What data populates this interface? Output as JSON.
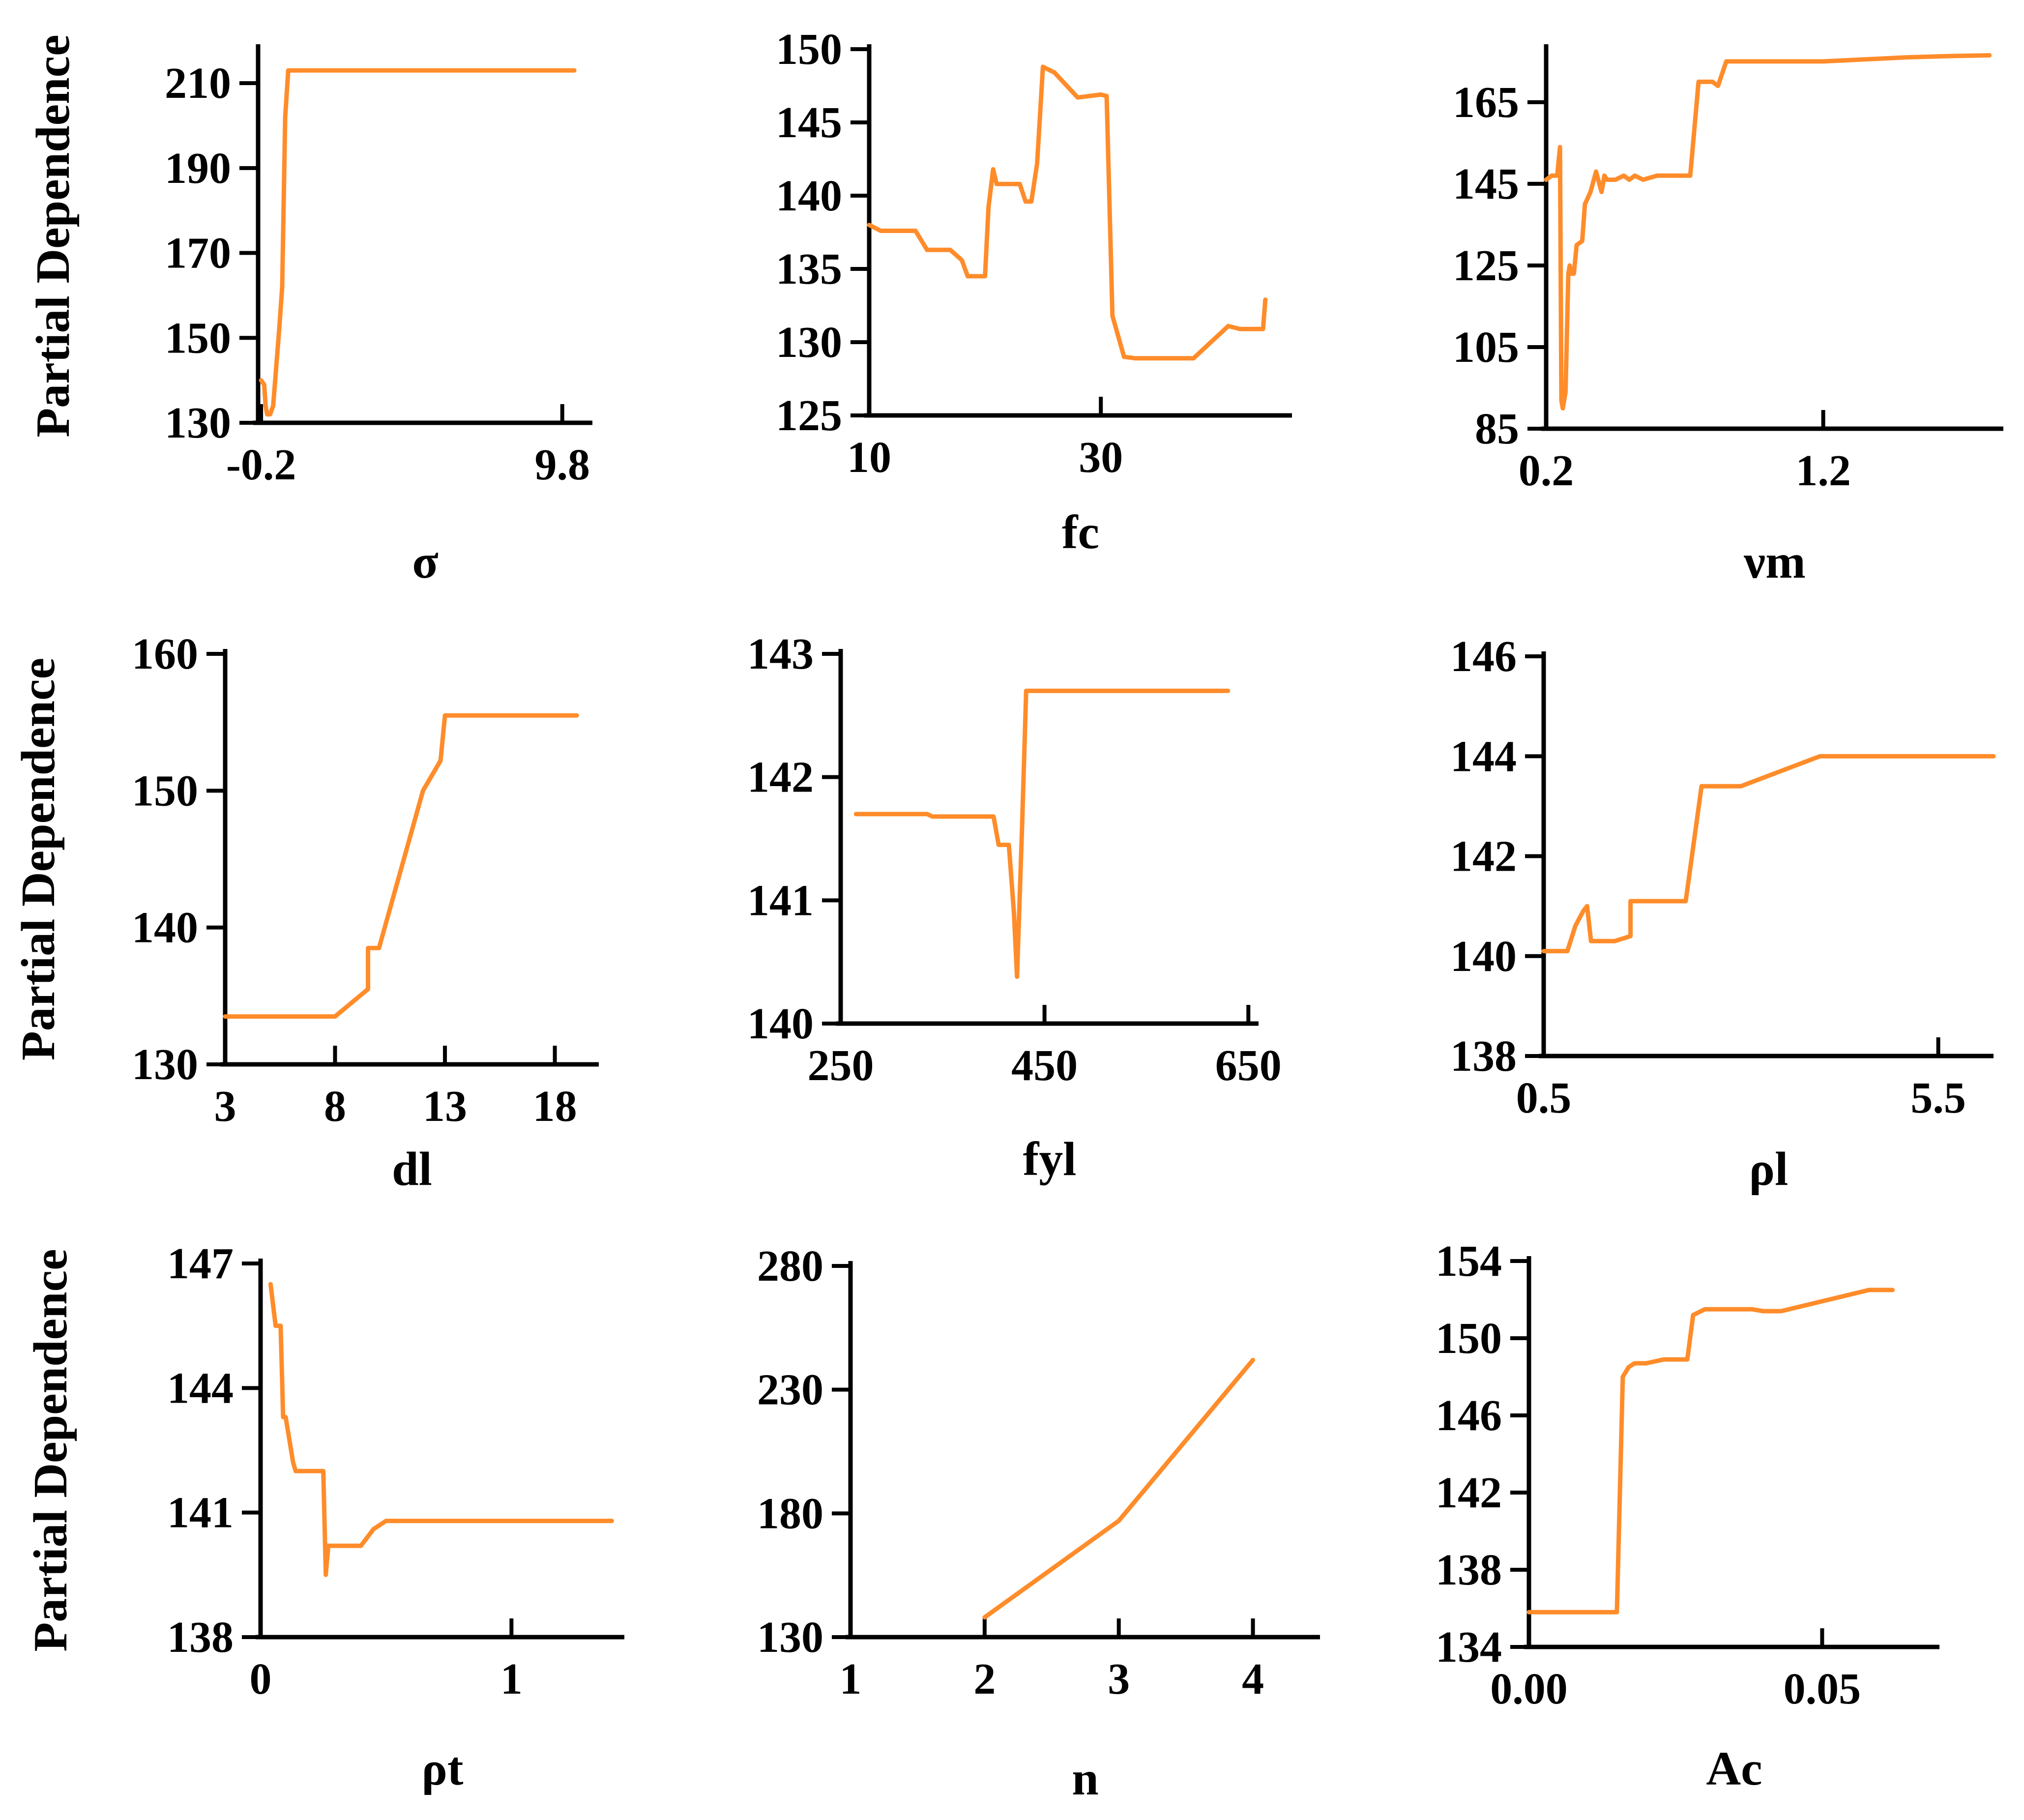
{
  "figure": {
    "line_color": "#FF8C2A",
    "axis_color": "#000000"
  },
  "chart_data": [
    {
      "type": "line",
      "xlabel": "σ",
      "ylabel": "Partial Dependence",
      "xlim": [
        -0.3,
        10.8
      ],
      "ylim": [
        130,
        218
      ],
      "xticks": [
        -0.2,
        9.8
      ],
      "xtick_labels": [
        "-0.2",
        "9.8"
      ],
      "yticks": [
        130,
        150,
        170,
        190,
        210
      ],
      "ytick_labels": [
        "130",
        "150",
        "170",
        "190",
        "210"
      ],
      "x": [
        -0.2,
        -0.1,
        -0.05,
        0.0,
        0.1,
        0.2,
        0.4,
        0.5,
        0.6,
        0.7,
        10.2
      ],
      "y": [
        140,
        139,
        134,
        132,
        132,
        134,
        152,
        162,
        202,
        213,
        213
      ]
    },
    {
      "type": "line",
      "xlabel": "fc",
      "ylabel": "",
      "xlim": [
        10,
        46.5
      ],
      "ylim": [
        125,
        150
      ],
      "xticks": [
        10,
        30
      ],
      "xtick_labels": [
        "10",
        "30"
      ],
      "yticks": [
        125,
        130,
        135,
        140,
        145,
        150
      ],
      "ytick_labels": [
        "125",
        "130",
        "135",
        "140",
        "145",
        "150"
      ],
      "x": [
        10,
        11,
        14,
        15,
        17,
        18,
        18.5,
        20,
        20.3,
        20.7,
        21,
        22,
        23,
        23.5,
        24,
        24.5,
        25,
        26,
        28,
        30,
        30.5,
        31,
        32,
        33,
        38,
        41,
        42,
        44,
        44.2
      ],
      "y": [
        138,
        137.6,
        137.6,
        136.3,
        136.3,
        135.6,
        134.5,
        134.5,
        139.2,
        141.8,
        140.8,
        140.8,
        140.8,
        139.6,
        139.6,
        142.2,
        148.8,
        148.4,
        146.7,
        146.9,
        146.8,
        131.8,
        129,
        128.9,
        128.9,
        131.1,
        130.9,
        130.9,
        132.9
      ]
    },
    {
      "type": "line",
      "xlabel": "νm",
      "ylabel": "",
      "xlim": [
        0.2,
        1.85
      ],
      "ylim": [
        85,
        178
      ],
      "xticks": [
        0.2,
        1.2
      ],
      "xtick_labels": [
        "0.2",
        "1.2"
      ],
      "yticks": [
        85,
        105,
        125,
        145,
        165
      ],
      "ytick_labels": [
        "85",
        "105",
        "125",
        "145",
        "165"
      ],
      "x": [
        0.2,
        0.22,
        0.24,
        0.25,
        0.255,
        0.26,
        0.265,
        0.27,
        0.28,
        0.285,
        0.29,
        0.3,
        0.31,
        0.33,
        0.34,
        0.36,
        0.38,
        0.4,
        0.41,
        0.42,
        0.43,
        0.45,
        0.48,
        0.5,
        0.52,
        0.55,
        0.6,
        0.65,
        0.7,
        0.72,
        0.75,
        0.8,
        0.82,
        0.85,
        1.0,
        1.2,
        1.35,
        1.5,
        1.65,
        1.8
      ],
      "y": [
        146,
        147,
        147,
        154,
        92,
        90,
        92,
        94,
        123,
        125,
        123,
        123,
        130,
        131,
        140,
        143,
        148,
        143,
        147,
        146,
        146,
        146,
        147,
        146,
        147,
        146,
        147,
        147,
        147,
        147,
        170,
        170,
        169,
        175,
        175,
        175,
        175.5,
        176,
        176.3,
        176.5
      ]
    },
    {
      "type": "line",
      "xlabel": "dl",
      "ylabel": "Partial Dependence",
      "xlim": [
        3,
        20
      ],
      "ylim": [
        130,
        160
      ],
      "xticks": [
        3,
        8,
        13,
        18
      ],
      "xtick_labels": [
        "3",
        "8",
        "13",
        "18"
      ],
      "yticks": [
        130,
        140,
        150,
        160
      ],
      "ytick_labels": [
        "130",
        "140",
        "150",
        "160"
      ],
      "x": [
        3,
        8,
        9.5,
        9.5,
        10,
        12,
        12.8,
        13,
        19
      ],
      "y": [
        133.5,
        133.5,
        135.5,
        138.5,
        138.5,
        150,
        152.2,
        155.5,
        155.5
      ]
    },
    {
      "type": "line",
      "xlabel": "fyl",
      "ylabel": "",
      "xlim": [
        250,
        660
      ],
      "ylim": [
        140,
        143
      ],
      "xticks": [
        250,
        450,
        650
      ],
      "xtick_labels": [
        "250",
        "450",
        "650"
      ],
      "yticks": [
        140,
        141,
        142,
        143
      ],
      "ytick_labels": [
        "140",
        "141",
        "142",
        "143"
      ],
      "x": [
        265,
        335,
        340,
        400,
        405,
        415,
        420,
        423,
        428,
        432,
        445,
        500,
        600,
        630
      ],
      "y": [
        141.7,
        141.7,
        141.68,
        141.68,
        141.45,
        141.45,
        140.9,
        140.38,
        141.6,
        142.7,
        142.7,
        142.7,
        142.7,
        142.7
      ]
    },
    {
      "type": "line",
      "xlabel": "ρl",
      "ylabel": "",
      "xlim": [
        0.5,
        6.2
      ],
      "ylim": [
        138,
        146
      ],
      "xticks": [
        0.5,
        5.5
      ],
      "xtick_labels": [
        "0.5",
        "5.5"
      ],
      "yticks": [
        138,
        140,
        142,
        144,
        146
      ],
      "ytick_labels": [
        "138",
        "140",
        "142",
        "144",
        "146"
      ],
      "x": [
        0.5,
        0.8,
        0.9,
        1.0,
        1.05,
        1.1,
        1.4,
        1.6,
        1.6,
        2.3,
        2.5,
        2.5,
        3.0,
        4.0,
        6.2
      ],
      "y": [
        140.1,
        140.1,
        140.6,
        140.9,
        141.0,
        140.3,
        140.3,
        140.4,
        141.1,
        141.1,
        143.4,
        143.4,
        143.4,
        144.0,
        144.0
      ]
    },
    {
      "type": "line",
      "xlabel": "ρt",
      "ylabel": "Partial Dependence",
      "xlim": [
        0,
        1.45
      ],
      "ylim": [
        138,
        147
      ],
      "xticks": [
        0,
        1
      ],
      "xtick_labels": [
        "0",
        "1"
      ],
      "yticks": [
        138,
        141,
        144,
        147
      ],
      "ytick_labels": [
        "138",
        "141",
        "144",
        "147"
      ],
      "x": [
        0.04,
        0.06,
        0.08,
        0.09,
        0.1,
        0.13,
        0.14,
        0.16,
        0.25,
        0.26,
        0.27,
        0.4,
        0.45,
        0.5,
        0.6,
        1.0,
        1.4
      ],
      "y": [
        146.5,
        145.5,
        145.5,
        143.3,
        143.3,
        142.2,
        142.0,
        142.0,
        142.0,
        139.5,
        140.2,
        140.2,
        140.6,
        140.8,
        140.8,
        140.8,
        140.8
      ]
    },
    {
      "type": "line",
      "xlabel": "n",
      "ylabel": "",
      "xlim": [
        1,
        4.5
      ],
      "ylim": [
        130,
        280
      ],
      "xticks": [
        1,
        2,
        3,
        4
      ],
      "xtick_labels": [
        "1",
        "2",
        "3",
        "4"
      ],
      "yticks": [
        130,
        180,
        230,
        280
      ],
      "ytick_labels": [
        "130",
        "180",
        "230",
        "280"
      ],
      "x": [
        2,
        3,
        4
      ],
      "y": [
        138,
        177,
        242
      ]
    },
    {
      "type": "line",
      "xlabel": "Ac",
      "ylabel": "",
      "xlim": [
        0,
        0.07
      ],
      "ylim": [
        134,
        154
      ],
      "xticks": [
        0.0,
        0.05
      ],
      "xtick_labels": [
        "0.00",
        "0.05"
      ],
      "yticks": [
        134,
        138,
        142,
        146,
        150,
        154
      ],
      "ytick_labels": [
        "134",
        "138",
        "142",
        "146",
        "150",
        "154"
      ],
      "x": [
        0.0,
        0.015,
        0.016,
        0.017,
        0.018,
        0.02,
        0.023,
        0.025,
        0.027,
        0.028,
        0.03,
        0.035,
        0.038,
        0.04,
        0.043,
        0.058,
        0.062
      ],
      "y": [
        135.8,
        135.8,
        148.0,
        148.5,
        148.7,
        148.7,
        148.9,
        148.9,
        148.9,
        151.2,
        151.5,
        151.5,
        151.5,
        151.4,
        151.4,
        152.5,
        152.5
      ]
    }
  ]
}
